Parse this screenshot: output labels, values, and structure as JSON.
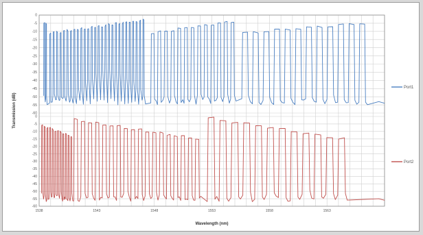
{
  "chart_data": {
    "type": "line",
    "xlabel": "Wavelength (nm)",
    "ylabel": "Transmission (dB)",
    "x_ticks": [
      "1538",
      "1543",
      "1548",
      "1553",
      "1558",
      "1563"
    ],
    "xlim": [
      1538,
      1568
    ],
    "y_ticks": [
      "0",
      "-5",
      "-10",
      "-15",
      "-20",
      "-25",
      "-30",
      "-35",
      "-40",
      "-45",
      "-50",
      "-55",
      "-60"
    ],
    "ylim": [
      -60,
      0
    ],
    "grid": true,
    "legend_position": "right",
    "series": [
      {
        "name": "Port1",
        "color": "#4a7fc1",
        "passbands": [
          {
            "start": 1538.4,
            "end": 1538.9,
            "period": 0.167,
            "duty": 0.5,
            "top": -5
          },
          {
            "start": 1538.9,
            "end": 1547.5,
            "period": 0.3,
            "duty": 0.42,
            "top_start": -11,
            "top_end": -3
          },
          {
            "start": 1547.7,
            "end": 1555.4,
            "period": 0.578,
            "duty": 0.55,
            "top_start": -11,
            "top_end": -4
          },
          {
            "start": 1555.6,
            "end": 1567.5,
            "period": 0.925,
            "duty": 0.62,
            "top_start": -11,
            "top_end": -5
          }
        ],
        "floor": -55,
        "hump": {
          "start": 1540.5,
          "end": 1547.5,
          "level": -37
        }
      },
      {
        "name": "Port2",
        "color": "#c0504d",
        "passbands": [
          {
            "start": 1538.2,
            "end": 1541.0,
            "period": 0.23,
            "duty": 0.5,
            "top_start": -6,
            "top_end": -13
          },
          {
            "start": 1541.0,
            "end": 1552.6,
            "period": 0.62,
            "duty": 0.6,
            "top_start": -2,
            "top_end": -15
          },
          {
            "start": 1552.6,
            "end": 1565.5,
            "period": 1.03,
            "duty": 0.65,
            "top_start": -1,
            "top_end": -15
          }
        ],
        "floor": -57
      }
    ]
  }
}
